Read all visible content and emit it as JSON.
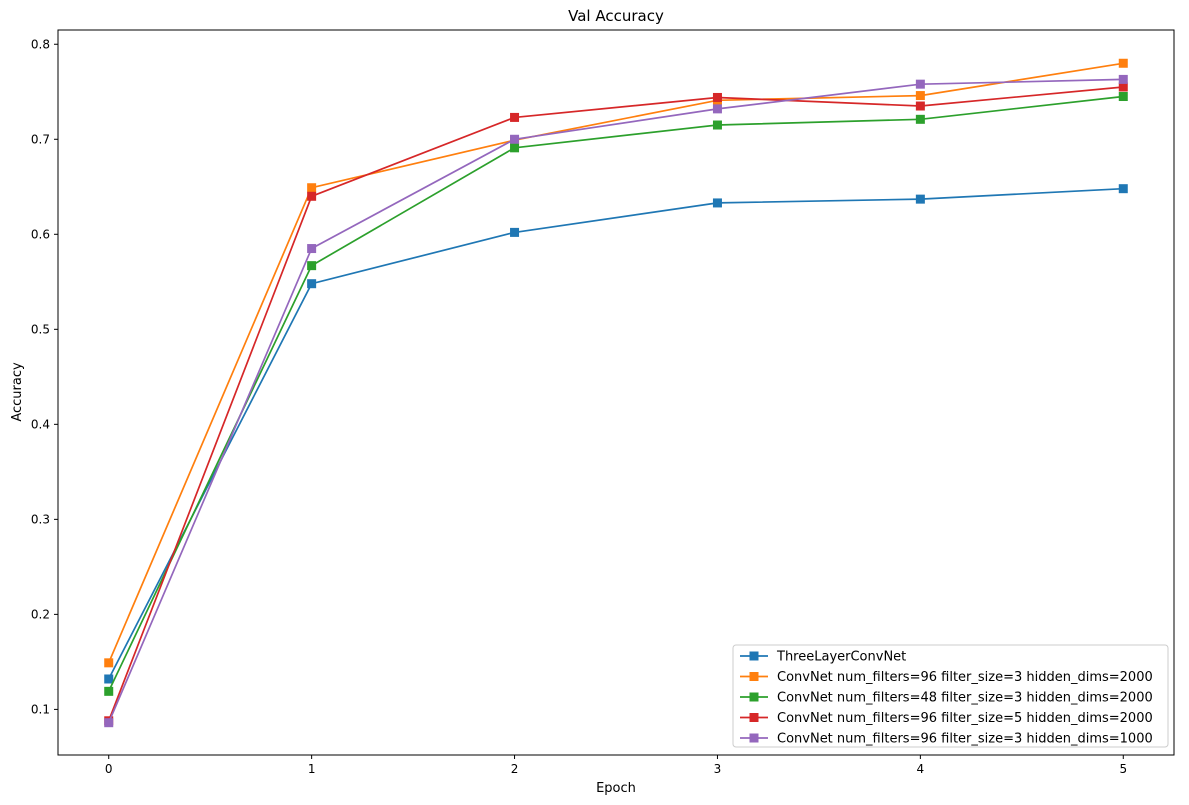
{
  "chart_data": {
    "type": "line",
    "title": "Val Accuracy",
    "xlabel": "Epoch",
    "ylabel": "Accuracy",
    "x": [
      0,
      1,
      2,
      3,
      4,
      5
    ],
    "xlim": [
      -0.25,
      5.25
    ],
    "ylim": [
      0.052,
      0.815
    ],
    "xticks": [
      0,
      1,
      2,
      3,
      4,
      5
    ],
    "yticks": [
      0.1,
      0.2,
      0.3,
      0.4,
      0.5,
      0.6,
      0.7,
      0.8
    ],
    "xtick_labels": [
      "0",
      "1",
      "2",
      "3",
      "4",
      "5"
    ],
    "ytick_labels": [
      "0.1",
      "0.2",
      "0.3",
      "0.4",
      "0.5",
      "0.6",
      "0.7",
      "0.8"
    ],
    "grid": false,
    "legend_position": "lower right",
    "marker": "square",
    "series": [
      {
        "name": "ThreeLayerConvNet",
        "color": "#1f77b4",
        "values": [
          0.132,
          0.548,
          0.602,
          0.633,
          0.637,
          0.648
        ]
      },
      {
        "name": "ConvNet num_filters=96 filter_size=3 hidden_dims=2000",
        "color": "#ff7f0e",
        "values": [
          0.149,
          0.649,
          0.699,
          0.741,
          0.746,
          0.78
        ]
      },
      {
        "name": "ConvNet num_filters=48 filter_size=3 hidden_dims=2000",
        "color": "#2ca02c",
        "values": [
          0.119,
          0.567,
          0.691,
          0.715,
          0.721,
          0.745
        ]
      },
      {
        "name": "ConvNet num_filters=96 filter_size=5 hidden_dims=2000",
        "color": "#d62728",
        "values": [
          0.088,
          0.64,
          0.723,
          0.744,
          0.735,
          0.755
        ]
      },
      {
        "name": "ConvNet num_filters=96 filter_size=3 hidden_dims=1000",
        "color": "#9467bd",
        "values": [
          0.086,
          0.585,
          0.7,
          0.732,
          0.758,
          0.763
        ]
      }
    ]
  }
}
